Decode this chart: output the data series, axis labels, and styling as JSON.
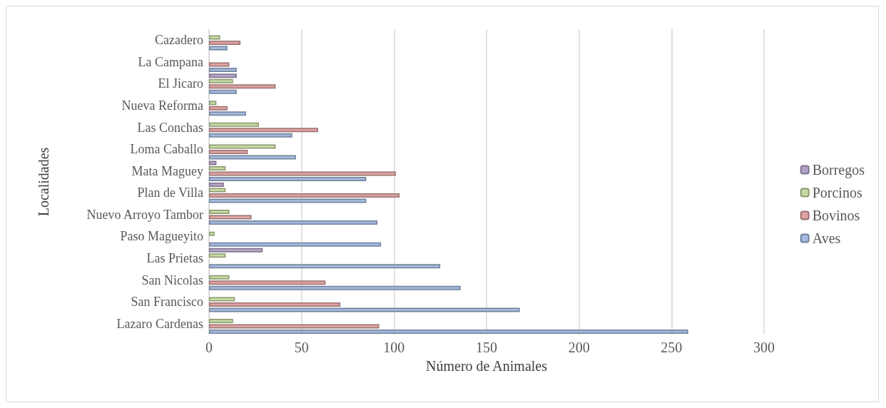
{
  "chart_data": {
    "type": "bar",
    "orientation": "horizontal",
    "xlabel": "Número de Animales",
    "ylabel": "Localidades",
    "categories": [
      "Cazadero",
      "La Campana",
      "El Jicaro",
      "Nueva Reforma",
      "Las Conchas",
      "Loma Caballo",
      "Mata Maguey",
      "Plan de Villa",
      "Nuevo Arroyo Tambor",
      "Paso Magueyito",
      "Las Prietas",
      "San Nicolas",
      "San Francisco",
      "Lazaro Cardenas"
    ],
    "series": [
      {
        "name": "Aves",
        "color": "#a3b8dc",
        "values": [
          10,
          15,
          15,
          20,
          45,
          47,
          85,
          85,
          91,
          93,
          125,
          136,
          168,
          259
        ]
      },
      {
        "name": "Bovinos",
        "color": "#dca3a2",
        "values": [
          17,
          11,
          36,
          10,
          59,
          21,
          101,
          103,
          23,
          null,
          null,
          63,
          71,
          92
        ]
      },
      {
        "name": "Porcinos",
        "color": "#c5d9a1",
        "values": [
          6,
          null,
          13,
          4,
          27,
          36,
          9,
          9,
          11,
          3,
          9,
          11,
          14,
          13
        ]
      },
      {
        "name": "Borregos",
        "color": "#b4a4c8",
        "values": [
          null,
          null,
          15,
          null,
          null,
          null,
          4,
          8,
          null,
          null,
          29,
          null,
          null,
          null
        ]
      }
    ],
    "xlim": [
      0,
      300
    ],
    "xticks": [
      0,
      50,
      100,
      150,
      200,
      250,
      300
    ],
    "grid": "x",
    "legend": "right"
  }
}
